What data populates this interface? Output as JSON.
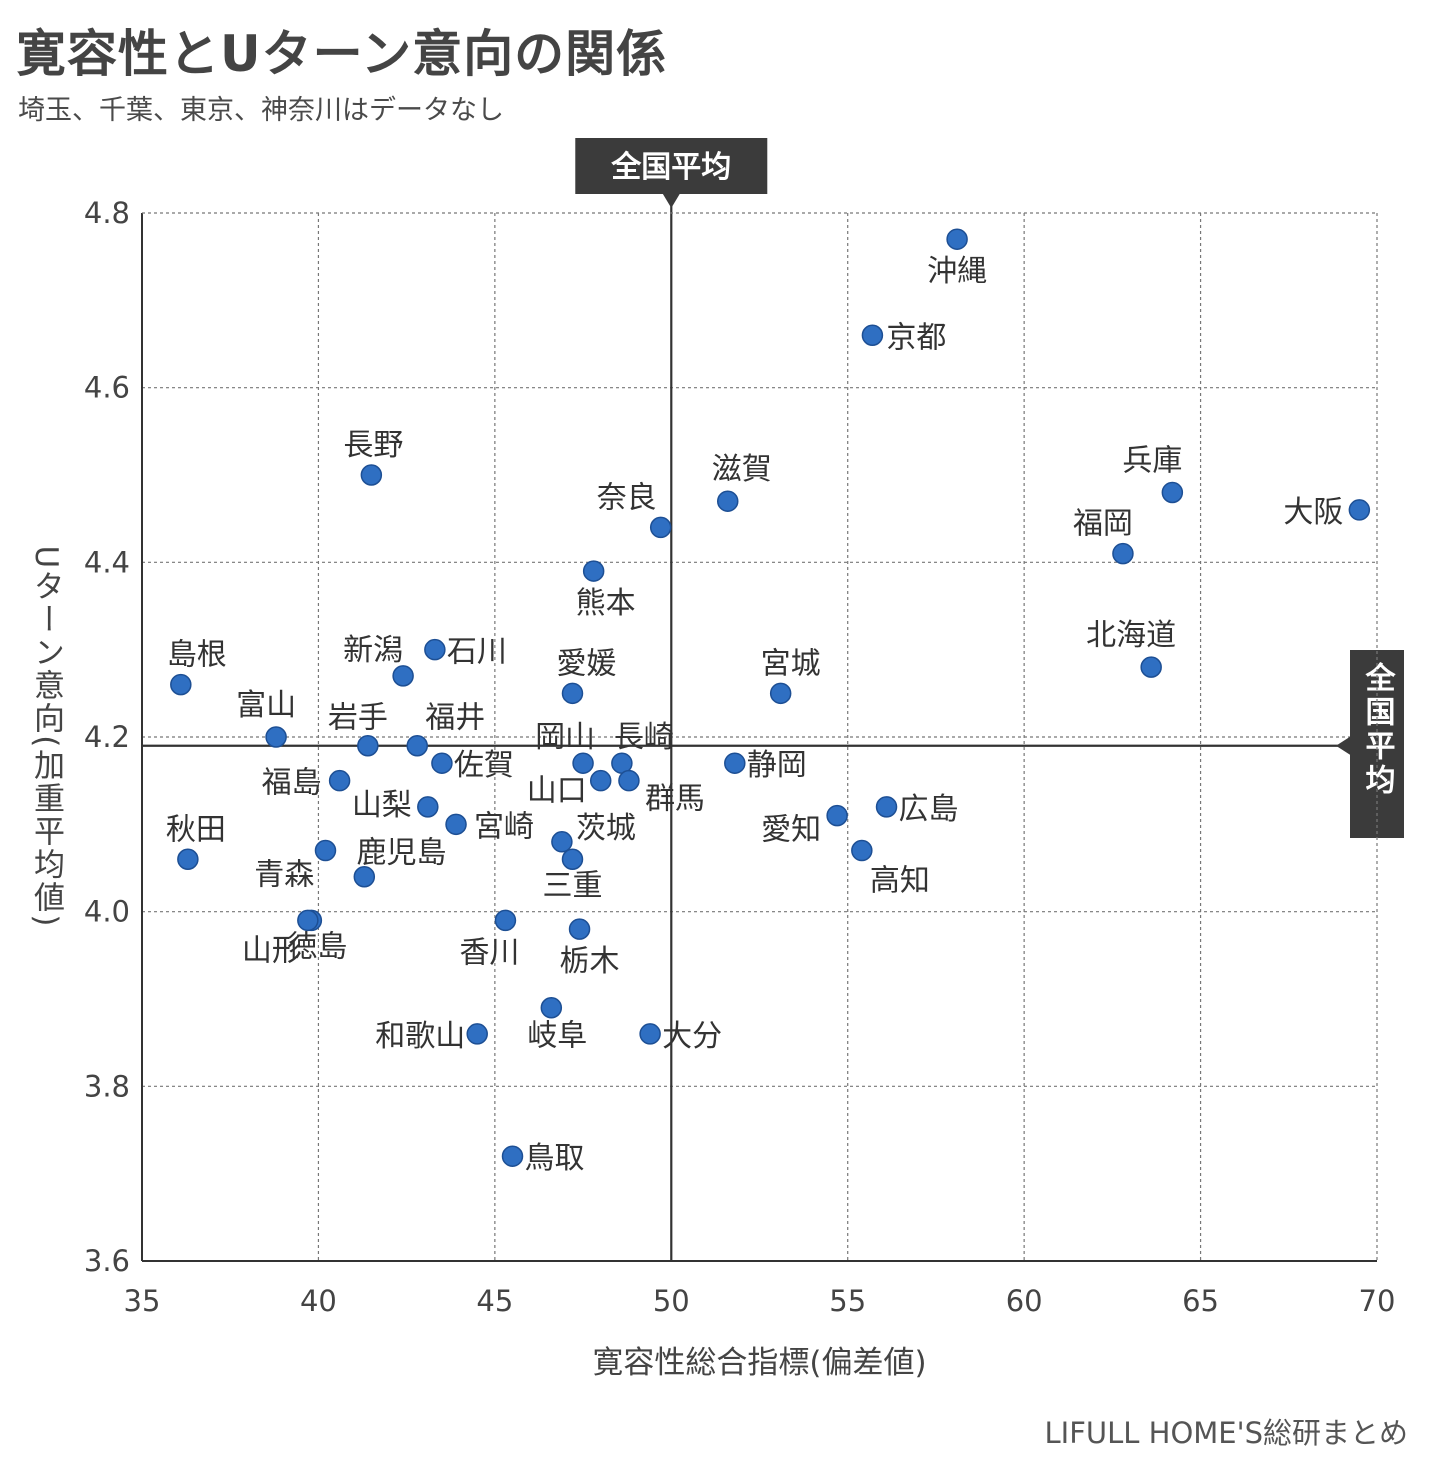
{
  "title": "寛容性とUターン意向の関係",
  "subtitle": "埼玉、千葉、東京、神奈川はデータなし",
  "source": "LIFULL HOME'S総研まとめ",
  "colors": {
    "point": "#2f6fc2",
    "point_edge": "#1d4f94",
    "avg_box": "#3b3b3b",
    "axis": "#333333"
  },
  "chart_data": {
    "type": "scatter",
    "xlabel": "寛容性総合指標(偏差値)",
    "ylabel": "Uターン意向(加重平均値)",
    "xlim": [
      35,
      70
    ],
    "ylim": [
      3.6,
      4.8
    ],
    "xticks": [
      "35",
      "40",
      "45",
      "50",
      "55",
      "60",
      "65",
      "70"
    ],
    "yticks": [
      "3.6",
      "3.8",
      "4.0",
      "4.2",
      "4.4",
      "4.6",
      "4.8"
    ],
    "grid": true,
    "average": {
      "label": "全国平均",
      "x": 50,
      "y": 4.19
    },
    "points": [
      {
        "name": "沖縄",
        "x": 58.1,
        "y": 4.77
      },
      {
        "name": "京都",
        "x": 55.7,
        "y": 4.66
      },
      {
        "name": "長野",
        "x": 41.5,
        "y": 4.5
      },
      {
        "name": "滋賀",
        "x": 51.6,
        "y": 4.47
      },
      {
        "name": "兵庫",
        "x": 64.2,
        "y": 4.48
      },
      {
        "name": "大阪",
        "x": 69.5,
        "y": 4.46
      },
      {
        "name": "奈良",
        "x": 49.7,
        "y": 4.44
      },
      {
        "name": "福岡",
        "x": 62.8,
        "y": 4.41
      },
      {
        "name": "熊本",
        "x": 47.8,
        "y": 4.39
      },
      {
        "name": "石川",
        "x": 43.3,
        "y": 4.3
      },
      {
        "name": "新潟",
        "x": 42.4,
        "y": 4.27
      },
      {
        "name": "北海道",
        "x": 63.6,
        "y": 4.28
      },
      {
        "name": "島根",
        "x": 36.1,
        "y": 4.26
      },
      {
        "name": "愛媛",
        "x": 47.2,
        "y": 4.25
      },
      {
        "name": "宮城",
        "x": 53.1,
        "y": 4.25
      },
      {
        "name": "富山",
        "x": 38.8,
        "y": 4.2
      },
      {
        "name": "岩手",
        "x": 41.4,
        "y": 4.19
      },
      {
        "name": "福井",
        "x": 42.8,
        "y": 4.19
      },
      {
        "name": "佐賀",
        "x": 43.5,
        "y": 4.17
      },
      {
        "name": "岡山",
        "x": 47.5,
        "y": 4.17
      },
      {
        "name": "長崎",
        "x": 48.6,
        "y": 4.17
      },
      {
        "name": "静岡",
        "x": 51.8,
        "y": 4.17
      },
      {
        "name": "福島",
        "x": 40.6,
        "y": 4.15
      },
      {
        "name": "山口",
        "x": 48.0,
        "y": 4.15
      },
      {
        "name": "群馬",
        "x": 48.8,
        "y": 4.15
      },
      {
        "name": "山梨",
        "x": 43.1,
        "y": 4.12
      },
      {
        "name": "広島",
        "x": 56.1,
        "y": 4.12
      },
      {
        "name": "愛知",
        "x": 54.7,
        "y": 4.11
      },
      {
        "name": "宮崎",
        "x": 43.9,
        "y": 4.1
      },
      {
        "name": "茨城",
        "x": 46.9,
        "y": 4.08
      },
      {
        "name": "高知",
        "x": 55.4,
        "y": 4.07
      },
      {
        "name": "鹿児島",
        "x": 40.2,
        "y": 4.07
      },
      {
        "name": "秋田",
        "x": 36.3,
        "y": 4.06
      },
      {
        "name": "三重",
        "x": 47.2,
        "y": 4.06
      },
      {
        "name": "青森",
        "x": 41.3,
        "y": 4.04
      },
      {
        "name": "徳島",
        "x": 39.8,
        "y": 3.99
      },
      {
        "name": "山形",
        "x": 39.7,
        "y": 3.99
      },
      {
        "name": "香川",
        "x": 45.3,
        "y": 3.99
      },
      {
        "name": "栃木",
        "x": 47.4,
        "y": 3.98
      },
      {
        "name": "岐阜",
        "x": 46.6,
        "y": 3.89
      },
      {
        "name": "和歌山",
        "x": 44.5,
        "y": 3.86
      },
      {
        "name": "大分",
        "x": 49.4,
        "y": 3.86
      },
      {
        "name": "鳥取",
        "x": 45.5,
        "y": 3.72
      }
    ]
  }
}
